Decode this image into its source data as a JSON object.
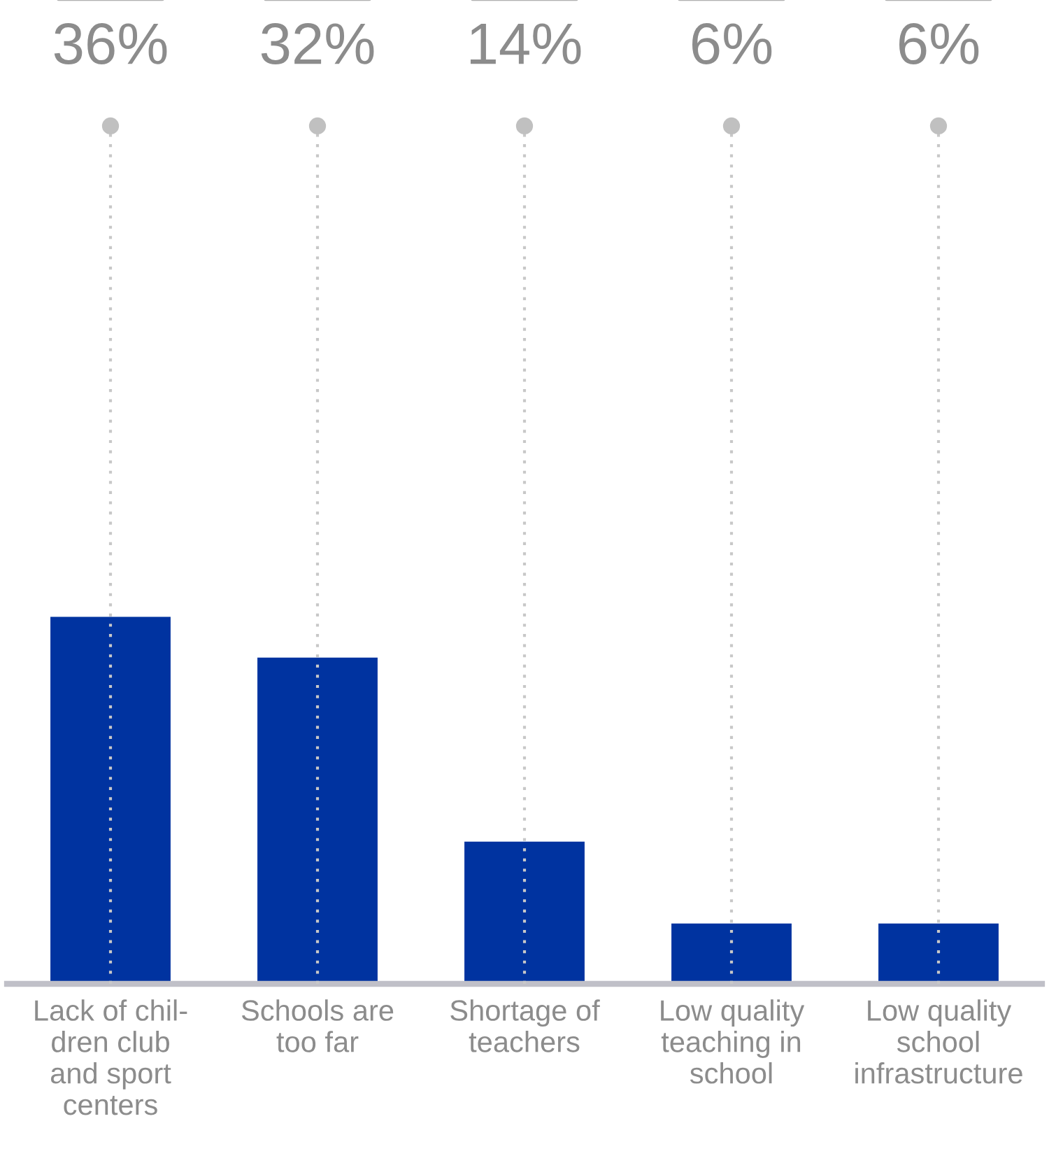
{
  "chart_data": {
    "type": "bar",
    "categories": [
      "Lack of chil-\ndren club\nand sport\ncenters",
      "Schools are\ntoo far",
      "Shortage of\nteachers",
      "Low quality\nteaching in\nschool",
      "Low quality\nschool\ninfrastructure"
    ],
    "values": [
      36,
      32,
      14,
      6,
      6
    ],
    "value_labels": [
      "36%",
      "32%",
      "14%",
      "6%",
      "6%"
    ],
    "color": "#0033a0",
    "grid": "x"
  }
}
